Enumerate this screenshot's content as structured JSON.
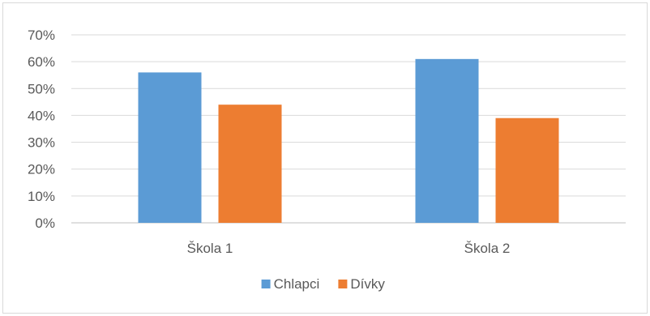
{
  "chart_data": {
    "type": "bar",
    "title": "",
    "xlabel": "",
    "ylabel": "",
    "ylim": [
      0,
      0.7
    ],
    "yticks": [
      0,
      0.1,
      0.2,
      0.3,
      0.4,
      0.5,
      0.6,
      0.7
    ],
    "ytick_labels": [
      "0%",
      "10%",
      "20%",
      "30%",
      "40%",
      "50%",
      "60%",
      "70%"
    ],
    "categories": [
      "Škola 1",
      "Škola 2"
    ],
    "series": [
      {
        "name": "Chlapci",
        "color": "#5b9bd5",
        "values": [
          0.56,
          0.61
        ]
      },
      {
        "name": "Dívky",
        "color": "#ed7d31",
        "values": [
          0.44,
          0.39
        ]
      }
    ],
    "grid": true,
    "legend_position": "bottom"
  }
}
